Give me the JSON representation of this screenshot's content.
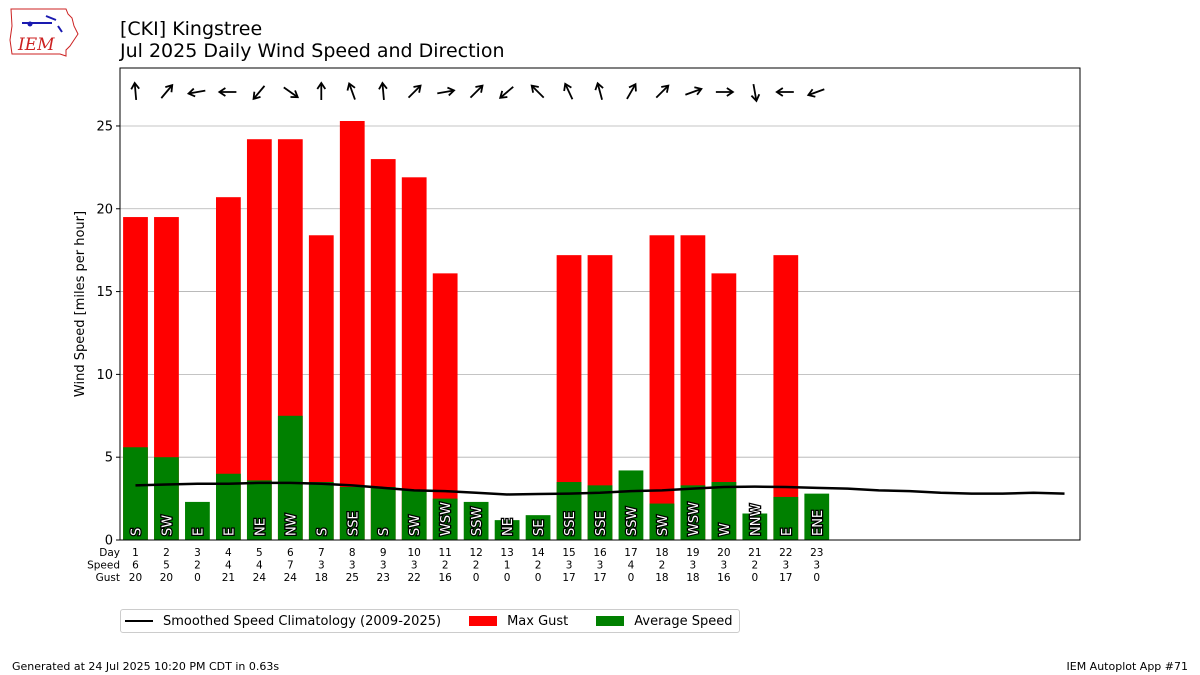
{
  "header": {
    "title_line1": "[CKI] Kingstree",
    "title_line2": "Jul 2025 Daily Wind Speed and Direction",
    "logo_text": "IEM"
  },
  "footer": {
    "generated": "Generated at 24 Jul 2025 10:20 PM CDT in 0.63s",
    "app": "IEM Autoplot App #71"
  },
  "legend": {
    "climatology": "Smoothed Speed Climatology (2009-2025)",
    "gust": "Max Gust",
    "average": "Average Speed"
  },
  "colors": {
    "gust": "#ff0000",
    "average": "#008000",
    "climatology": "#000000",
    "grid": "#b0b0b0"
  },
  "chart_data": {
    "type": "bar",
    "ylabel": "Wind Speed [miles per hour]",
    "ylim": [
      0,
      28.5
    ],
    "xlim": [
      0.5,
      31.5
    ],
    "yticks": [
      0,
      5,
      10,
      15,
      20,
      25
    ],
    "grid": "horizontal",
    "legend_placement": "below",
    "row_labels": [
      "Day",
      "Speed",
      "Gust"
    ],
    "days": [
      1,
      2,
      3,
      4,
      5,
      6,
      7,
      8,
      9,
      10,
      11,
      12,
      13,
      14,
      15,
      16,
      17,
      18,
      19,
      20,
      21,
      22,
      23
    ],
    "speed_labels": [
      6,
      5,
      2,
      4,
      4,
      7,
      3,
      3,
      3,
      3,
      2,
      2,
      1,
      2,
      3,
      3,
      4,
      2,
      3,
      3,
      2,
      3,
      3
    ],
    "gust_labels": [
      20,
      20,
      0,
      21,
      24,
      24,
      18,
      25,
      23,
      22,
      16,
      0,
      0,
      0,
      17,
      17,
      0,
      18,
      18,
      16,
      0,
      17,
      0
    ],
    "series": [
      {
        "name": "Max Gust",
        "values": [
          19.5,
          19.5,
          0,
          20.7,
          24.2,
          24.2,
          18.4,
          25.3,
          23.0,
          21.9,
          16.1,
          0,
          0,
          0,
          17.2,
          17.2,
          0,
          18.4,
          18.4,
          16.1,
          0,
          17.2,
          0
        ]
      },
      {
        "name": "Average Speed",
        "values": [
          5.6,
          5.0,
          2.3,
          4.0,
          3.6,
          7.5,
          3.5,
          3.2,
          3.2,
          3.0,
          2.5,
          2.3,
          1.2,
          1.5,
          3.5,
          3.3,
          4.2,
          2.2,
          3.3,
          3.5,
          1.6,
          2.6,
          2.8
        ]
      }
    ],
    "directions": [
      "S",
      "SW",
      "E",
      "E",
      "NE",
      "NW",
      "S",
      "SSE",
      "S",
      "SW",
      "WSW",
      "SSW",
      "NE",
      "SE",
      "SSE",
      "SSE",
      "SSW",
      "SW",
      "WSW",
      "W",
      "NNW",
      "E",
      "ENE"
    ],
    "arrow_angles_deg": [
      355,
      40,
      260,
      270,
      220,
      125,
      0,
      340,
      355,
      45,
      80,
      45,
      230,
      315,
      335,
      345,
      30,
      45,
      70,
      90,
      170,
      270,
      250
    ],
    "climatology": {
      "name": "Smoothed Speed Climatology (2009-2025)",
      "x": [
        1,
        2,
        3,
        4,
        5,
        6,
        7,
        8,
        9,
        10,
        11,
        12,
        13,
        14,
        15,
        16,
        17,
        18,
        19,
        20,
        21,
        22,
        23,
        24,
        25,
        26,
        27,
        28,
        29,
        30,
        31
      ],
      "values": [
        3.3,
        3.35,
        3.4,
        3.4,
        3.45,
        3.45,
        3.4,
        3.3,
        3.15,
        3.0,
        2.95,
        2.85,
        2.75,
        2.78,
        2.8,
        2.85,
        2.95,
        3.0,
        3.1,
        3.2,
        3.22,
        3.2,
        3.15,
        3.1,
        3.0,
        2.95,
        2.85,
        2.8,
        2.8,
        2.85,
        2.8
      ]
    }
  }
}
